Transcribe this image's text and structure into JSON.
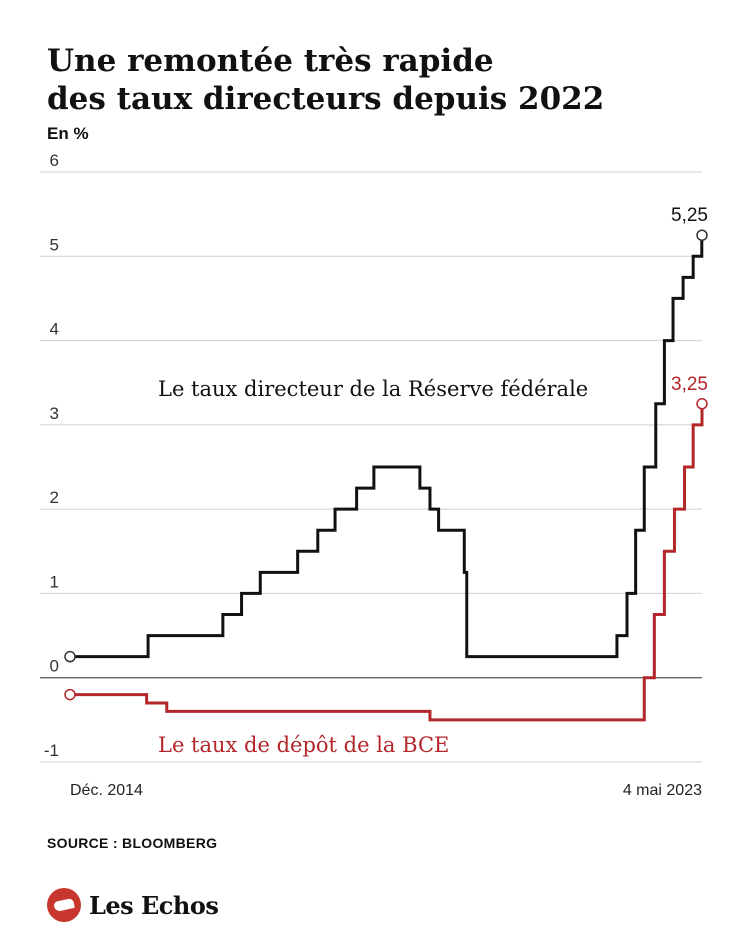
{
  "header": {
    "title_line1": "Une remontée très rapide",
    "title_line2": "des taux directeurs depuis 2022",
    "unit": "En %"
  },
  "footer": {
    "source": "SOURCE : BLOOMBERG",
    "brand": "Les Echos",
    "brand_icon": "les-echos-logo-icon"
  },
  "chart_data": {
    "type": "line",
    "step": true,
    "xlim": [
      "2014-12-01",
      "2023-05-04"
    ],
    "ylim": [
      -1,
      6
    ],
    "yticks": [
      -1,
      0,
      1,
      2,
      3,
      4,
      5,
      6
    ],
    "ytick_labels": [
      "-1",
      "0",
      "1",
      "2",
      "3",
      "4",
      "5",
      "6"
    ],
    "x_endpoint_labels": [
      "Déc. 2014",
      "4 mai 2023"
    ],
    "grid": true,
    "series": [
      {
        "name": "Le taux directeur de la Réserve fédérale",
        "color": "#111111",
        "end_label": "5,25",
        "points": [
          [
            "2014-12-01",
            0.25
          ],
          [
            "2015-12-16",
            0.5
          ],
          [
            "2016-12-14",
            0.75
          ],
          [
            "2017-03-15",
            1.0
          ],
          [
            "2017-06-14",
            1.25
          ],
          [
            "2017-12-13",
            1.5
          ],
          [
            "2018-03-21",
            1.75
          ],
          [
            "2018-06-13",
            2.0
          ],
          [
            "2018-09-26",
            2.25
          ],
          [
            "2018-12-19",
            2.5
          ],
          [
            "2019-07-31",
            2.25
          ],
          [
            "2019-09-18",
            2.0
          ],
          [
            "2019-10-30",
            1.75
          ],
          [
            "2020-03-03",
            1.25
          ],
          [
            "2020-03-15",
            0.25
          ],
          [
            "2022-03-16",
            0.5
          ],
          [
            "2022-05-04",
            1.0
          ],
          [
            "2022-06-15",
            1.75
          ],
          [
            "2022-07-27",
            2.5
          ],
          [
            "2022-09-21",
            3.25
          ],
          [
            "2022-11-02",
            4.0
          ],
          [
            "2022-12-14",
            4.5
          ],
          [
            "2023-02-01",
            4.75
          ],
          [
            "2023-03-22",
            5.0
          ],
          [
            "2023-05-03",
            5.25
          ],
          [
            "2023-05-04",
            5.25
          ]
        ]
      },
      {
        "name": "Le taux de dépôt de la BCE",
        "color": "#b3262a",
        "end_label": "3,25",
        "points": [
          [
            "2014-12-01",
            -0.2
          ],
          [
            "2015-12-09",
            -0.3
          ],
          [
            "2016-03-16",
            -0.4
          ],
          [
            "2019-09-18",
            -0.5
          ],
          [
            "2022-07-27",
            0.0
          ],
          [
            "2022-09-14",
            0.75
          ],
          [
            "2022-11-02",
            1.5
          ],
          [
            "2022-12-21",
            2.0
          ],
          [
            "2023-02-08",
            2.5
          ],
          [
            "2023-03-22",
            3.0
          ],
          [
            "2023-05-04",
            3.25
          ]
        ]
      }
    ]
  }
}
